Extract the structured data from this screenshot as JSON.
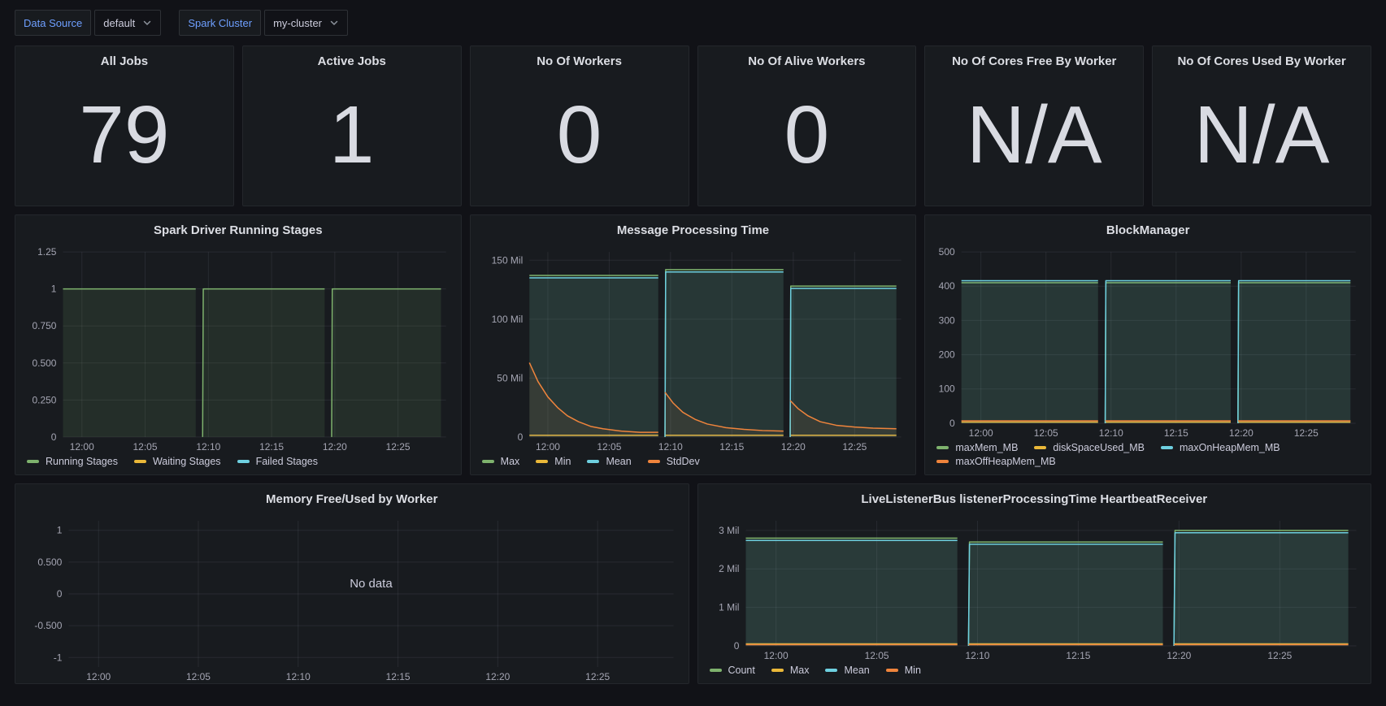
{
  "colors": {
    "background": "#111217",
    "panel": "#181B1F",
    "link_blue": "#6E9FFF",
    "green": "#7EB26D",
    "yellow": "#EAB839",
    "cyan": "#6ED0E0",
    "orange": "#EF843C"
  },
  "toolbar": {
    "variables": [
      {
        "label": "Data Source",
        "value": "default"
      },
      {
        "label": "Spark Cluster",
        "value": "my-cluster"
      }
    ]
  },
  "stats": [
    {
      "title": "All Jobs",
      "value": "79"
    },
    {
      "title": "Active Jobs",
      "value": "1"
    },
    {
      "title": "No Of Workers",
      "value": "0"
    },
    {
      "title": "No Of Alive Workers",
      "value": "0"
    },
    {
      "title": "No Of Cores Free By Worker",
      "value": "N/A"
    },
    {
      "title": "No Of Cores Used By Worker",
      "value": "N/A"
    }
  ],
  "chart_data": [
    {
      "type": "area",
      "title": "Spark Driver Running Stages",
      "x_range": [
        -1.5,
        28.8
      ],
      "y_range": [
        0,
        1.25
      ],
      "y_ticks": [
        {
          "v": 0,
          "label": "0"
        },
        {
          "v": 0.25,
          "label": "0.250"
        },
        {
          "v": 0.5,
          "label": "0.500"
        },
        {
          "v": 0.75,
          "label": "0.750"
        },
        {
          "v": 1,
          "label": "1"
        },
        {
          "v": 1.25,
          "label": "1.25"
        }
      ],
      "x_ticks": [
        {
          "v": 0,
          "label": "12:00"
        },
        {
          "v": 5,
          "label": "12:05"
        },
        {
          "v": 10,
          "label": "12:10"
        },
        {
          "v": 15,
          "label": "12:15"
        },
        {
          "v": 20,
          "label": "12:20"
        },
        {
          "v": 25,
          "label": "12:25"
        }
      ],
      "legend": [
        {
          "label": "Running Stages",
          "color": "#7EB26D"
        },
        {
          "label": "Waiting Stages",
          "color": "#EAB839"
        },
        {
          "label": "Failed Stages",
          "color": "#6ED0E0"
        }
      ],
      "series": [
        {
          "name": "Running Stages",
          "color": "#7EB26D",
          "fill_opacity": 0.13,
          "segments": [
            [
              [
                -1.5,
                1
              ],
              [
                9.0,
                1
              ]
            ],
            [
              [
                9.55,
                0
              ],
              [
                9.6,
                1
              ],
              [
                19.2,
                1
              ]
            ],
            [
              [
                19.75,
                0
              ],
              [
                19.8,
                1
              ],
              [
                28.4,
                1
              ]
            ]
          ]
        }
      ]
    },
    {
      "type": "area",
      "title": "Message Processing Time",
      "x_range": [
        -1.5,
        28.8
      ],
      "y_range": [
        0,
        157
      ],
      "y_ticks": [
        {
          "v": 0,
          "label": "0"
        },
        {
          "v": 50,
          "label": "50 Mil"
        },
        {
          "v": 100,
          "label": "100 Mil"
        },
        {
          "v": 150,
          "label": "150 Mil"
        }
      ],
      "x_ticks": [
        {
          "v": 0,
          "label": "12:00"
        },
        {
          "v": 5,
          "label": "12:05"
        },
        {
          "v": 10,
          "label": "12:10"
        },
        {
          "v": 15,
          "label": "12:15"
        },
        {
          "v": 20,
          "label": "12:20"
        },
        {
          "v": 25,
          "label": "12:25"
        }
      ],
      "legend": [
        {
          "label": "Max",
          "color": "#7EB26D"
        },
        {
          "label": "Min",
          "color": "#EAB839"
        },
        {
          "label": "Mean",
          "color": "#6ED0E0"
        },
        {
          "label": "StdDev",
          "color": "#EF843C"
        }
      ],
      "series": [
        {
          "name": "Max",
          "color": "#7EB26D",
          "fill_opacity": 0.09,
          "segments": [
            [
              [
                -1.5,
                137
              ],
              [
                9.0,
                137
              ]
            ],
            [
              [
                9.55,
                0
              ],
              [
                9.6,
                142
              ],
              [
                19.2,
                142
              ]
            ],
            [
              [
                19.75,
                0
              ],
              [
                19.8,
                128
              ],
              [
                28.4,
                128
              ]
            ]
          ]
        },
        {
          "name": "Min",
          "color": "#EAB839",
          "fill_opacity": 0,
          "segments": [
            [
              [
                -1.5,
                1.5
              ],
              [
                9.0,
                1.5
              ]
            ],
            [
              [
                9.55,
                1.5
              ],
              [
                19.2,
                1.5
              ]
            ],
            [
              [
                19.75,
                1.5
              ],
              [
                28.4,
                1.5
              ]
            ]
          ]
        },
        {
          "name": "Mean",
          "color": "#6ED0E0",
          "fill_opacity": 0.09,
          "segments": [
            [
              [
                -1.5,
                135
              ],
              [
                9.0,
                135
              ]
            ],
            [
              [
                9.55,
                0
              ],
              [
                9.6,
                140
              ],
              [
                19.2,
                140
              ]
            ],
            [
              [
                19.75,
                0
              ],
              [
                19.8,
                126
              ],
              [
                28.4,
                126
              ]
            ]
          ]
        },
        {
          "name": "StdDev",
          "color": "#EF843C",
          "fill_opacity": 0.08,
          "segments": [
            [
              [
                -1.5,
                63
              ],
              [
                -0.8,
                47
              ],
              [
                0,
                34
              ],
              [
                0.8,
                25
              ],
              [
                1.6,
                18
              ],
              [
                2.5,
                13
              ],
              [
                3.5,
                9
              ],
              [
                4.5,
                7
              ],
              [
                6,
                5
              ],
              [
                7.5,
                4
              ],
              [
                9.0,
                4
              ]
            ],
            [
              [
                9.55,
                38
              ],
              [
                10.2,
                29
              ],
              [
                11,
                21
              ],
              [
                12,
                15
              ],
              [
                13,
                11
              ],
              [
                14.5,
                8
              ],
              [
                16,
                6.5
              ],
              [
                17.5,
                5.5
              ],
              [
                19.2,
                5
              ]
            ],
            [
              [
                19.75,
                31
              ],
              [
                20.4,
                24
              ],
              [
                21.2,
                18
              ],
              [
                22.2,
                13
              ],
              [
                23.5,
                10
              ],
              [
                25,
                8.5
              ],
              [
                26.5,
                7.5
              ],
              [
                28.4,
                7
              ]
            ]
          ]
        }
      ]
    },
    {
      "type": "area",
      "title": "BlockManager",
      "x_range": [
        -1.5,
        28.8
      ],
      "y_range": [
        0,
        500
      ],
      "y_ticks": [
        {
          "v": 0,
          "label": "0"
        },
        {
          "v": 100,
          "label": "100"
        },
        {
          "v": 200,
          "label": "200"
        },
        {
          "v": 300,
          "label": "300"
        },
        {
          "v": 400,
          "label": "400"
        },
        {
          "v": 500,
          "label": "500"
        }
      ],
      "x_ticks": [
        {
          "v": 0,
          "label": "12:00"
        },
        {
          "v": 5,
          "label": "12:05"
        },
        {
          "v": 10,
          "label": "12:10"
        },
        {
          "v": 15,
          "label": "12:15"
        },
        {
          "v": 20,
          "label": "12:20"
        },
        {
          "v": 25,
          "label": "12:25"
        }
      ],
      "legend": [
        {
          "label": "maxMem_MB",
          "color": "#7EB26D"
        },
        {
          "label": "diskSpaceUsed_MB",
          "color": "#EAB839"
        },
        {
          "label": "maxOnHeapMem_MB",
          "color": "#6ED0E0"
        },
        {
          "label": "maxOffHeapMem_MB",
          "color": "#EF843C"
        }
      ],
      "series": [
        {
          "name": "maxMem_MB",
          "color": "#7EB26D",
          "fill_opacity": 0.09,
          "segments": [
            [
              [
                -1.5,
                410
              ],
              [
                9.0,
                410
              ]
            ],
            [
              [
                9.55,
                0
              ],
              [
                9.6,
                410
              ],
              [
                19.2,
                410
              ]
            ],
            [
              [
                19.75,
                0
              ],
              [
                19.8,
                410
              ],
              [
                28.4,
                410
              ]
            ]
          ]
        },
        {
          "name": "diskSpaceUsed_MB",
          "color": "#EAB839",
          "fill_opacity": 0,
          "segments": [
            [
              [
                -1.5,
                3
              ],
              [
                9.0,
                3
              ]
            ],
            [
              [
                9.55,
                3
              ],
              [
                19.2,
                3
              ]
            ],
            [
              [
                19.75,
                3
              ],
              [
                28.4,
                3
              ]
            ]
          ]
        },
        {
          "name": "maxOnHeapMem_MB",
          "color": "#6ED0E0",
          "fill_opacity": 0.09,
          "segments": [
            [
              [
                -1.5,
                416
              ],
              [
                9.0,
                416
              ]
            ],
            [
              [
                9.55,
                0
              ],
              [
                9.6,
                416
              ],
              [
                19.2,
                416
              ]
            ],
            [
              [
                19.75,
                0
              ],
              [
                19.8,
                416
              ],
              [
                28.4,
                416
              ]
            ]
          ]
        },
        {
          "name": "maxOffHeapMem_MB",
          "color": "#EF843C",
          "fill_opacity": 0,
          "segments": [
            [
              [
                -1.5,
                7
              ],
              [
                9.0,
                7
              ]
            ],
            [
              [
                9.55,
                7
              ],
              [
                19.2,
                7
              ]
            ],
            [
              [
                19.75,
                7
              ],
              [
                28.4,
                7
              ]
            ]
          ]
        }
      ]
    },
    {
      "type": "area",
      "title": "Memory Free/Used by Worker",
      "x_range": [
        -1.5,
        28.8
      ],
      "y_range": [
        -1.15,
        1.15
      ],
      "y_ticks": [
        {
          "v": -1,
          "label": "-1"
        },
        {
          "v": -0.5,
          "label": "-0.500"
        },
        {
          "v": 0,
          "label": "0"
        },
        {
          "v": 0.5,
          "label": "0.500"
        },
        {
          "v": 1,
          "label": "1"
        }
      ],
      "x_ticks": [
        {
          "v": 0,
          "label": "12:00"
        },
        {
          "v": 5,
          "label": "12:05"
        },
        {
          "v": 10,
          "label": "12:10"
        },
        {
          "v": 15,
          "label": "12:15"
        },
        {
          "v": 20,
          "label": "12:20"
        },
        {
          "v": 25,
          "label": "12:25"
        }
      ],
      "no_data": "No data",
      "legend": [],
      "series": []
    },
    {
      "type": "area",
      "title": "LiveListenerBus listenerProcessingTime HeartbeatReceiver",
      "x_range": [
        -1.5,
        28.8
      ],
      "y_range": [
        0,
        3.25
      ],
      "y_ticks": [
        {
          "v": 0,
          "label": "0"
        },
        {
          "v": 1,
          "label": "1 Mil"
        },
        {
          "v": 2,
          "label": "2 Mil"
        },
        {
          "v": 3,
          "label": "3 Mil"
        }
      ],
      "x_ticks": [
        {
          "v": 0,
          "label": "12:00"
        },
        {
          "v": 5,
          "label": "12:05"
        },
        {
          "v": 10,
          "label": "12:10"
        },
        {
          "v": 15,
          "label": "12:15"
        },
        {
          "v": 20,
          "label": "12:20"
        },
        {
          "v": 25,
          "label": "12:25"
        }
      ],
      "legend": [
        {
          "label": "Count",
          "color": "#7EB26D"
        },
        {
          "label": "Max",
          "color": "#EAB839"
        },
        {
          "label": "Mean",
          "color": "#6ED0E0"
        },
        {
          "label": "Min",
          "color": "#EF843C"
        }
      ],
      "series": [
        {
          "name": "Count",
          "color": "#7EB26D",
          "fill_opacity": 0.1,
          "segments": [
            [
              [
                -1.5,
                2.8
              ],
              [
                9.0,
                2.8
              ]
            ],
            [
              [
                9.55,
                0
              ],
              [
                9.6,
                2.7
              ],
              [
                19.2,
                2.7
              ]
            ],
            [
              [
                19.75,
                0
              ],
              [
                19.8,
                3.0
              ],
              [
                28.4,
                3.0
              ]
            ]
          ]
        },
        {
          "name": "Max",
          "color": "#EAB839",
          "fill_opacity": 0,
          "segments": [
            [
              [
                -1.5,
                0.05
              ],
              [
                9.0,
                0.05
              ]
            ],
            [
              [
                9.55,
                0.05
              ],
              [
                19.2,
                0.05
              ]
            ],
            [
              [
                19.75,
                0.05
              ],
              [
                28.4,
                0.05
              ]
            ]
          ]
        },
        {
          "name": "Mean",
          "color": "#6ED0E0",
          "fill_opacity": 0.1,
          "segments": [
            [
              [
                -1.5,
                2.74
              ],
              [
                9.0,
                2.74
              ]
            ],
            [
              [
                9.55,
                0
              ],
              [
                9.6,
                2.64
              ],
              [
                19.2,
                2.64
              ]
            ],
            [
              [
                19.75,
                0
              ],
              [
                19.8,
                2.94
              ],
              [
                28.4,
                2.94
              ]
            ]
          ]
        },
        {
          "name": "Min",
          "color": "#EF843C",
          "fill_opacity": 0,
          "segments": [
            [
              [
                -1.5,
                0.03
              ],
              [
                9.0,
                0.03
              ]
            ],
            [
              [
                9.55,
                0.03
              ],
              [
                19.2,
                0.03
              ]
            ],
            [
              [
                19.75,
                0.03
              ],
              [
                28.4,
                0.03
              ]
            ]
          ]
        }
      ]
    }
  ]
}
